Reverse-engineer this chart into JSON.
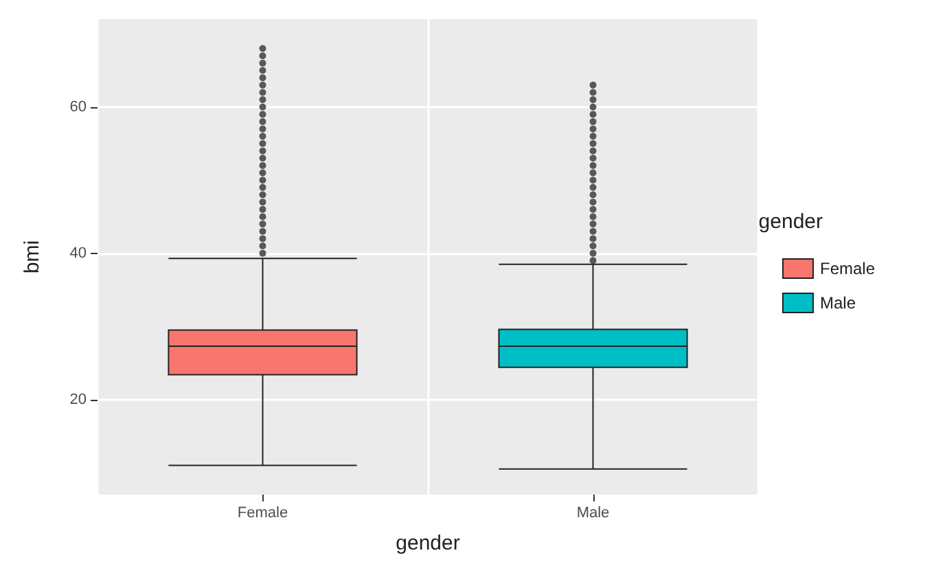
{
  "chart_data": {
    "type": "box",
    "xlabel": "gender",
    "ylabel": "bmi",
    "legend_title": "gender",
    "categories": [
      "Female",
      "Male"
    ],
    "series": [
      {
        "name": "Female",
        "color": "#f8766d",
        "boxes": [
          {
            "low": 11,
            "q1": 23.4,
            "median": 27.3,
            "q3": 29.5,
            "high": 39.3,
            "outliers": [
              40,
              41,
              42,
              43,
              44,
              45,
              46,
              47,
              48,
              49,
              50,
              51,
              52,
              53,
              54,
              55,
              56,
              57,
              58,
              59,
              60,
              61,
              62,
              63,
              64,
              65,
              66,
              67,
              68
            ]
          },
          null
        ]
      },
      {
        "name": "Male",
        "color": "#00bfc4",
        "boxes": [
          null,
          {
            "low": 10.5,
            "q1": 24.4,
            "median": 27.3,
            "q3": 29.6,
            "high": 38.5,
            "outliers": [
              39,
              40,
              41,
              42,
              43,
              44,
              45,
              46,
              47,
              48,
              49,
              50,
              51,
              52,
              53,
              54,
              55,
              56,
              57,
              58,
              59,
              60,
              61,
              62,
              63
            ]
          }
        ]
      }
    ],
    "ylim": [
      7,
      72
    ],
    "yticks": [
      20,
      40,
      60
    ],
    "grid": true,
    "legend": "right"
  }
}
